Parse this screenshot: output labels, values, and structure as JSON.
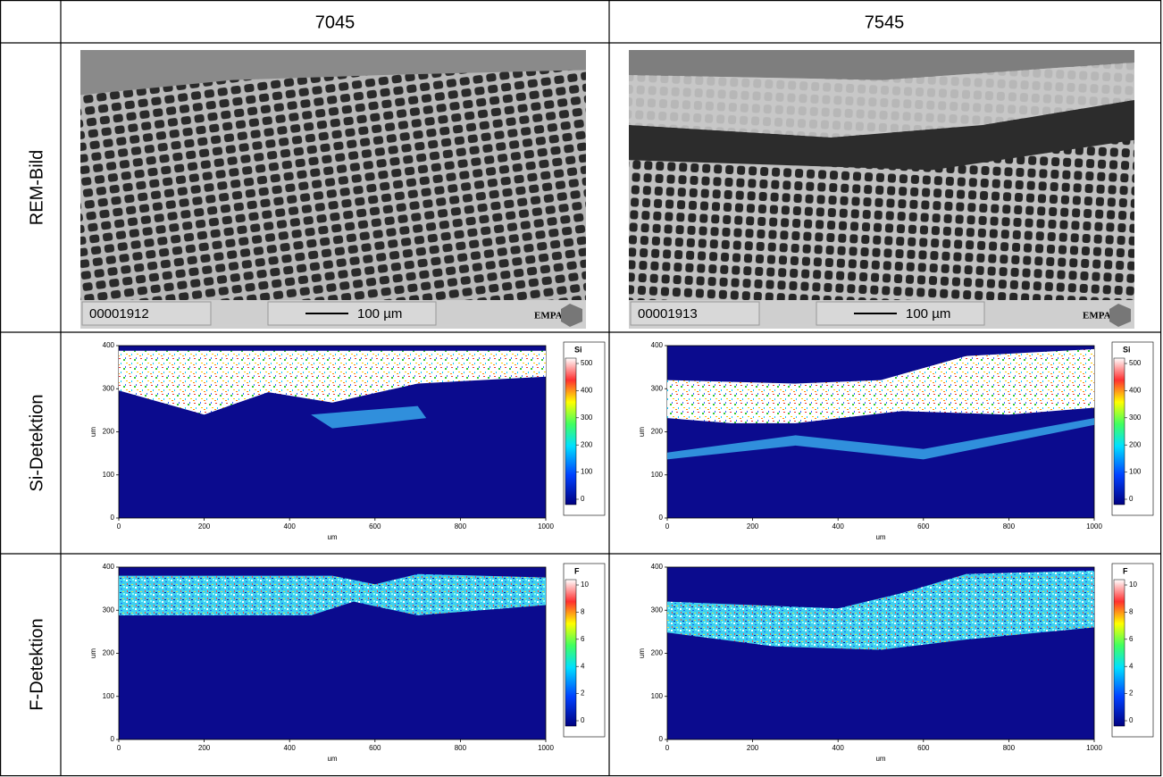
{
  "table": {
    "columns": [
      "7045",
      "7545"
    ],
    "rows": [
      {
        "label": "REM-Bild",
        "images": [
          {
            "id": "00001912",
            "scale": "100 µm",
            "logo": "EMPA"
          },
          {
            "id": "00001913",
            "scale": "100 µm",
            "logo": "EMPA"
          }
        ]
      },
      {
        "label": "Si-Detektion",
        "element": "Si",
        "colorbar_ticks": [
          0,
          100,
          200,
          300,
          400,
          500
        ]
      },
      {
        "label": "F-Detektion",
        "element": "F",
        "colorbar_ticks": [
          0,
          2,
          4,
          6,
          8,
          10
        ]
      }
    ]
  },
  "maps": {
    "xticks": [
      0,
      200,
      400,
      600,
      800,
      1000
    ],
    "yticks": [
      0,
      100,
      200,
      300,
      400
    ],
    "x_label": "um",
    "y_label": "um"
  }
}
